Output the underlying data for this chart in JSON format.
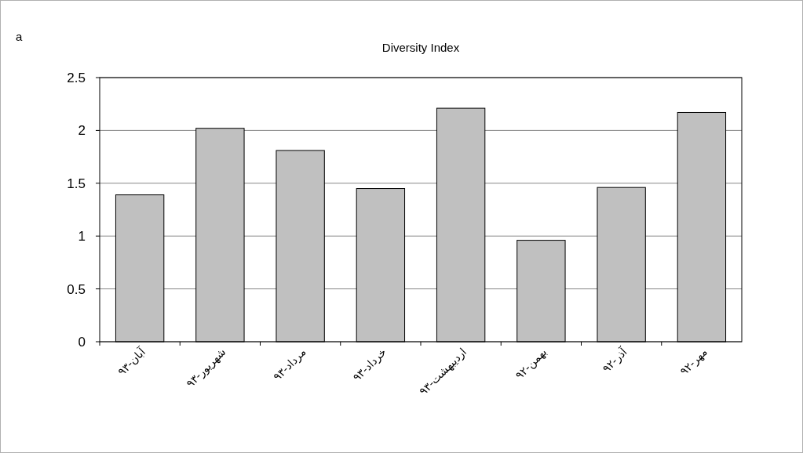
{
  "chart_data": {
    "type": "bar",
    "title": "Diversity Index",
    "categories": [
      "آبان-۹۳",
      "شهریور-۹۳",
      "مرداد-۹۳",
      "خرداد-۹۳",
      "اردیبهشت-۹۳",
      "بهمن-۹۲",
      "آذر-۹۲",
      "مهر-۹۲"
    ],
    "values": [
      1.39,
      2.02,
      1.81,
      1.45,
      2.21,
      0.96,
      1.46,
      2.17
    ],
    "color": "#c0c0c0",
    "ylim": [
      0,
      2.5
    ],
    "yticks": [
      0,
      0.5,
      1,
      1.5,
      2,
      2.5
    ],
    "grid": "y",
    "annotations": [
      "a"
    ]
  }
}
